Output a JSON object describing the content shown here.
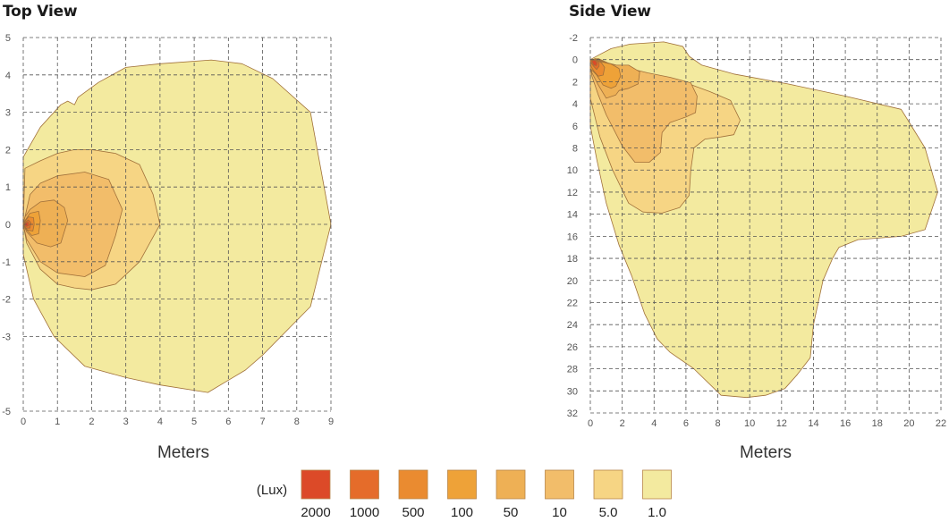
{
  "chart_data": [
    {
      "type": "contour",
      "title": "Top View",
      "xlabel": "Meters",
      "x_ticks": [
        0,
        1,
        2,
        3,
        4,
        5,
        6,
        7,
        8,
        9
      ],
      "y_ticks": [
        5,
        4,
        3,
        2,
        1,
        0,
        -1,
        -2,
        -3,
        -5
      ],
      "xlim": [
        0,
        9
      ],
      "ylim": [
        -5,
        5
      ],
      "grid": true,
      "contours": [
        {
          "level": "1.0",
          "points": [
            [
              0,
              1.8
            ],
            [
              0.5,
              2.6
            ],
            [
              1.1,
              3.2
            ],
            [
              1.3,
              3.3
            ],
            [
              1.5,
              3.2
            ],
            [
              1.6,
              3.4
            ],
            [
              2.2,
              3.8
            ],
            [
              3,
              4.2
            ],
            [
              4,
              4.3
            ],
            [
              5.5,
              4.4
            ],
            [
              6.4,
              4.3
            ],
            [
              7.3,
              3.9
            ],
            [
              8.4,
              3.0
            ],
            [
              9,
              0
            ],
            [
              8.4,
              -2.2
            ],
            [
              7,
              -3.5
            ],
            [
              6.5,
              -3.9
            ],
            [
              5.4,
              -4.5
            ],
            [
              4,
              -4.3
            ],
            [
              3,
              -4.1
            ],
            [
              1.8,
              -3.8
            ],
            [
              0.9,
              -3.0
            ],
            [
              0.3,
              -2.0
            ],
            [
              0,
              -0.8
            ]
          ]
        },
        {
          "level": "5.0",
          "points": [
            [
              0.05,
              1.5
            ],
            [
              0.5,
              1.7
            ],
            [
              1,
              1.9
            ],
            [
              1.5,
              2.0
            ],
            [
              2,
              2.0
            ],
            [
              2.7,
              1.9
            ],
            [
              3.4,
              1.6
            ],
            [
              3.8,
              0.8
            ],
            [
              4.0,
              0
            ],
            [
              3.4,
              -1.0
            ],
            [
              2.7,
              -1.6
            ],
            [
              2,
              -1.75
            ],
            [
              1.5,
              -1.7
            ],
            [
              1,
              -1.6
            ],
            [
              0.5,
              -1.2
            ],
            [
              0.1,
              -0.5
            ],
            [
              0,
              0
            ]
          ]
        },
        {
          "level": "10",
          "points": [
            [
              0.2,
              0.8
            ],
            [
              0.5,
              1.1
            ],
            [
              1,
              1.3
            ],
            [
              1.8,
              1.4
            ],
            [
              2.5,
              1.2
            ],
            [
              2.9,
              0.4
            ],
            [
              2.7,
              -0.3
            ],
            [
              2.4,
              -1.1
            ],
            [
              1.8,
              -1.4
            ],
            [
              1,
              -1.3
            ],
            [
              0.5,
              -1.0
            ],
            [
              0.1,
              -0.4
            ],
            [
              0,
              0
            ]
          ]
        },
        {
          "level": "50",
          "points": [
            [
              0.05,
              0.2
            ],
            [
              0.2,
              0.4
            ],
            [
              0.5,
              0.6
            ],
            [
              0.9,
              0.65
            ],
            [
              1.2,
              0.45
            ],
            [
              1.3,
              0.1
            ],
            [
              1.1,
              -0.5
            ],
            [
              0.8,
              -0.6
            ],
            [
              0.4,
              -0.5
            ],
            [
              0.1,
              -0.2
            ],
            [
              0,
              0
            ]
          ]
        },
        {
          "level": "100",
          "points": [
            [
              0.05,
              0.1
            ],
            [
              0.2,
              0.3
            ],
            [
              0.45,
              0.35
            ],
            [
              0.5,
              0.1
            ],
            [
              0.45,
              -0.25
            ],
            [
              0.25,
              -0.3
            ],
            [
              0.1,
              -0.15
            ],
            [
              0,
              0
            ]
          ]
        },
        {
          "level": "500",
          "points": [
            [
              0.05,
              0.08
            ],
            [
              0.15,
              0.2
            ],
            [
              0.3,
              0.18
            ],
            [
              0.32,
              0
            ],
            [
              0.28,
              -0.18
            ],
            [
              0.12,
              -0.15
            ],
            [
              0,
              0
            ]
          ]
        },
        {
          "level": "1000",
          "points": [
            [
              0.05,
              0.05
            ],
            [
              0.15,
              0.12
            ],
            [
              0.22,
              0.05
            ],
            [
              0.2,
              -0.1
            ],
            [
              0.08,
              -0.1
            ],
            [
              0,
              0
            ]
          ]
        },
        {
          "level": "2000",
          "points": [
            [
              0.06,
              0.04
            ],
            [
              0.14,
              0.06
            ],
            [
              0.16,
              -0.03
            ],
            [
              0.08,
              -0.06
            ],
            [
              0.03,
              -0.02
            ]
          ]
        }
      ]
    },
    {
      "type": "contour",
      "title": "Side View",
      "xlabel": "Meters",
      "x_ticks": [
        0,
        2,
        4,
        6,
        8,
        10,
        12,
        14,
        16,
        18,
        20,
        22
      ],
      "y_ticks": [
        -2,
        0,
        2,
        4,
        6,
        8,
        10,
        12,
        14,
        16,
        18,
        20,
        22,
        24,
        26,
        28,
        30,
        32
      ],
      "xlim": [
        0,
        22
      ],
      "ylim": [
        32,
        -2
      ],
      "grid": true,
      "contours": [
        {
          "level": "1.0",
          "points": [
            [
              0,
              0
            ],
            [
              0.5,
              -0.4
            ],
            [
              1.3,
              -1.0
            ],
            [
              2.5,
              -1.4
            ],
            [
              4.6,
              -1.6
            ],
            [
              5.8,
              -1.2
            ],
            [
              6.2,
              -0.3
            ],
            [
              7,
              0.5
            ],
            [
              9,
              1.3
            ],
            [
              12.4,
              2.2
            ],
            [
              16,
              3.3
            ],
            [
              19.5,
              4.5
            ],
            [
              21,
              8.0
            ],
            [
              21.8,
              12
            ],
            [
              21,
              15.4
            ],
            [
              19.5,
              16.0
            ],
            [
              16.8,
              16.3
            ],
            [
              15.6,
              17.0
            ],
            [
              15.2,
              18
            ],
            [
              14.6,
              20.0
            ],
            [
              14,
              24
            ],
            [
              13.8,
              27.0
            ],
            [
              13,
              28.5
            ],
            [
              12.2,
              29.8
            ],
            [
              11,
              30.4
            ],
            [
              9.8,
              30.6
            ],
            [
              8.2,
              30.4
            ],
            [
              6.5,
              28.0
            ],
            [
              5,
              26.5
            ],
            [
              4.2,
              25.3
            ],
            [
              3.4,
              23.0
            ],
            [
              2.6,
              19.6
            ],
            [
              1.8,
              16.8
            ],
            [
              1,
              13
            ],
            [
              0.4,
              9
            ],
            [
              0,
              6
            ]
          ]
        },
        {
          "level": "5.0",
          "points": [
            [
              0,
              0.5
            ],
            [
              0.5,
              -0.1
            ],
            [
              1.1,
              0.3
            ],
            [
              2.4,
              0.8
            ],
            [
              4.3,
              1.5
            ],
            [
              6,
              2.1
            ],
            [
              7.5,
              2.9
            ],
            [
              8.8,
              3.7
            ],
            [
              9.4,
              5.5
            ],
            [
              9,
              6.8
            ],
            [
              8.2,
              7.0
            ],
            [
              7.2,
              7.2
            ],
            [
              6.5,
              8.0
            ],
            [
              6.3,
              10.0
            ],
            [
              6.2,
              12.3
            ],
            [
              5.6,
              13.4
            ],
            [
              4.5,
              13.9
            ],
            [
              3.3,
              13.8
            ],
            [
              2.4,
              13
            ],
            [
              1.4,
              10
            ],
            [
              0.6,
              7
            ],
            [
              0,
              3.5
            ]
          ]
        },
        {
          "level": "10",
          "points": [
            [
              0,
              0.4
            ],
            [
              0.4,
              -0.1
            ],
            [
              1.0,
              0.3
            ],
            [
              2.2,
              0.7
            ],
            [
              3.6,
              1.2
            ],
            [
              5,
              1.6
            ],
            [
              6.3,
              2.1
            ],
            [
              6.7,
              3.3
            ],
            [
              6.6,
              4.8
            ],
            [
              6,
              5.2
            ],
            [
              5,
              5.7
            ],
            [
              4.5,
              6.6
            ],
            [
              4.4,
              8.4
            ],
            [
              3.7,
              9.3
            ],
            [
              2.8,
              9.3
            ],
            [
              2,
              7.8
            ],
            [
              1,
              5
            ],
            [
              0.5,
              3.2
            ],
            [
              0.1,
              1.5
            ]
          ]
        },
        {
          "level": "50",
          "points": [
            [
              0,
              0.2
            ],
            [
              0.3,
              -0.1
            ],
            [
              0.8,
              0.2
            ],
            [
              1.6,
              0.5
            ],
            [
              2.4,
              0.5
            ],
            [
              3.1,
              1.1
            ],
            [
              3,
              2.2
            ],
            [
              2.4,
              2.6
            ],
            [
              1.8,
              2.8
            ],
            [
              1.6,
              3.2
            ],
            [
              1,
              3.5
            ],
            [
              0.5,
              2.3
            ],
            [
              0.1,
              1.2
            ]
          ]
        },
        {
          "level": "100",
          "points": [
            [
              0,
              0.1
            ],
            [
              0.3,
              0
            ],
            [
              0.7,
              0.2
            ],
            [
              1.3,
              0.4
            ],
            [
              1.8,
              0.8
            ],
            [
              1.9,
              1.5
            ],
            [
              1.6,
              2.4
            ],
            [
              1.3,
              2.6
            ],
            [
              0.8,
              2.3
            ],
            [
              0.4,
              1.4
            ],
            [
              0,
              0.8
            ]
          ]
        },
        {
          "level": "500",
          "points": [
            [
              0,
              0.05
            ],
            [
              0.3,
              -0.05
            ],
            [
              0.7,
              0.3
            ],
            [
              0.9,
              0.7
            ],
            [
              0.8,
              1.4
            ],
            [
              0.5,
              1.5
            ],
            [
              0.2,
              1.0
            ],
            [
              0,
              0.5
            ]
          ]
        },
        {
          "level": "1000",
          "points": [
            [
              0.05,
              0
            ],
            [
              0.3,
              -0.05
            ],
            [
              0.55,
              0.3
            ],
            [
              0.55,
              0.6
            ],
            [
              0.4,
              0.9
            ],
            [
              0.2,
              0.6
            ],
            [
              0.05,
              0.3
            ]
          ]
        },
        {
          "level": "2000",
          "points": [
            [
              0.12,
              0.05
            ],
            [
              0.3,
              0.05
            ],
            [
              0.42,
              0.3
            ],
            [
              0.38,
              0.55
            ],
            [
              0.22,
              0.5
            ],
            [
              0.12,
              0.25
            ]
          ]
        }
      ]
    }
  ],
  "legend": {
    "unit": "(Lux)",
    "items": [
      {
        "label": "2000",
        "color": "#dc4a28"
      },
      {
        "label": "1000",
        "color": "#e56c2a"
      },
      {
        "label": "500",
        "color": "#ea8b30"
      },
      {
        "label": "100",
        "color": "#eea238"
      },
      {
        "label": "50",
        "color": "#eeb055"
      },
      {
        "label": "10",
        "color": "#f2bd6a"
      },
      {
        "label": "5.0",
        "color": "#f6d584"
      },
      {
        "label": "1.0",
        "color": "#f3ea9f"
      }
    ]
  }
}
